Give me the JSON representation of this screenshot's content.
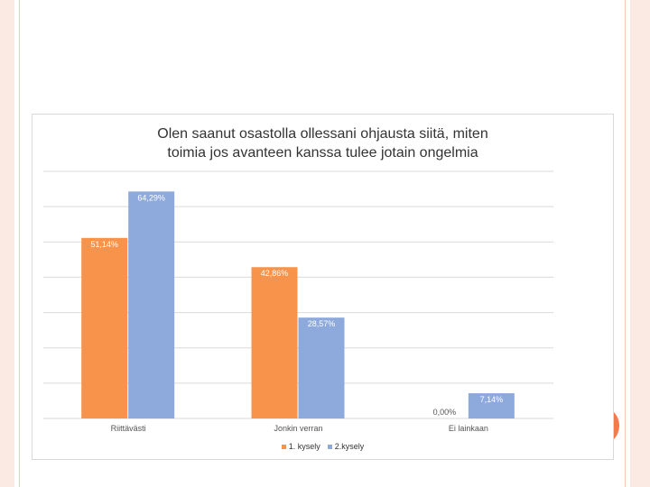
{
  "colors": {
    "series1": "#f7934b",
    "series2": "#8ea9db",
    "gridline": "#d9d9d9",
    "axis_text": "#555555"
  },
  "chart_data": {
    "type": "bar",
    "title": "Olen saanut osastolla ollessani ohjausta siitä, miten\ntoimia jos avanteen kanssa tulee jotain ongelmia",
    "categories": [
      "Riittävästi",
      "Jonkin verran",
      "Ei lainkaan"
    ],
    "series": [
      {
        "name": "1. kysely",
        "values": [
          51.14,
          42.86,
          0.0
        ],
        "labels": [
          "51,14%",
          "42,86%",
          "0,00%"
        ]
      },
      {
        "name": "2.kysely",
        "values": [
          64.29,
          28.57,
          7.14
        ],
        "labels": [
          "64,29%",
          "28,57%",
          "7,14%"
        ]
      }
    ],
    "ylim": [
      0,
      70
    ],
    "grid": true,
    "legend_position": "bottom"
  }
}
